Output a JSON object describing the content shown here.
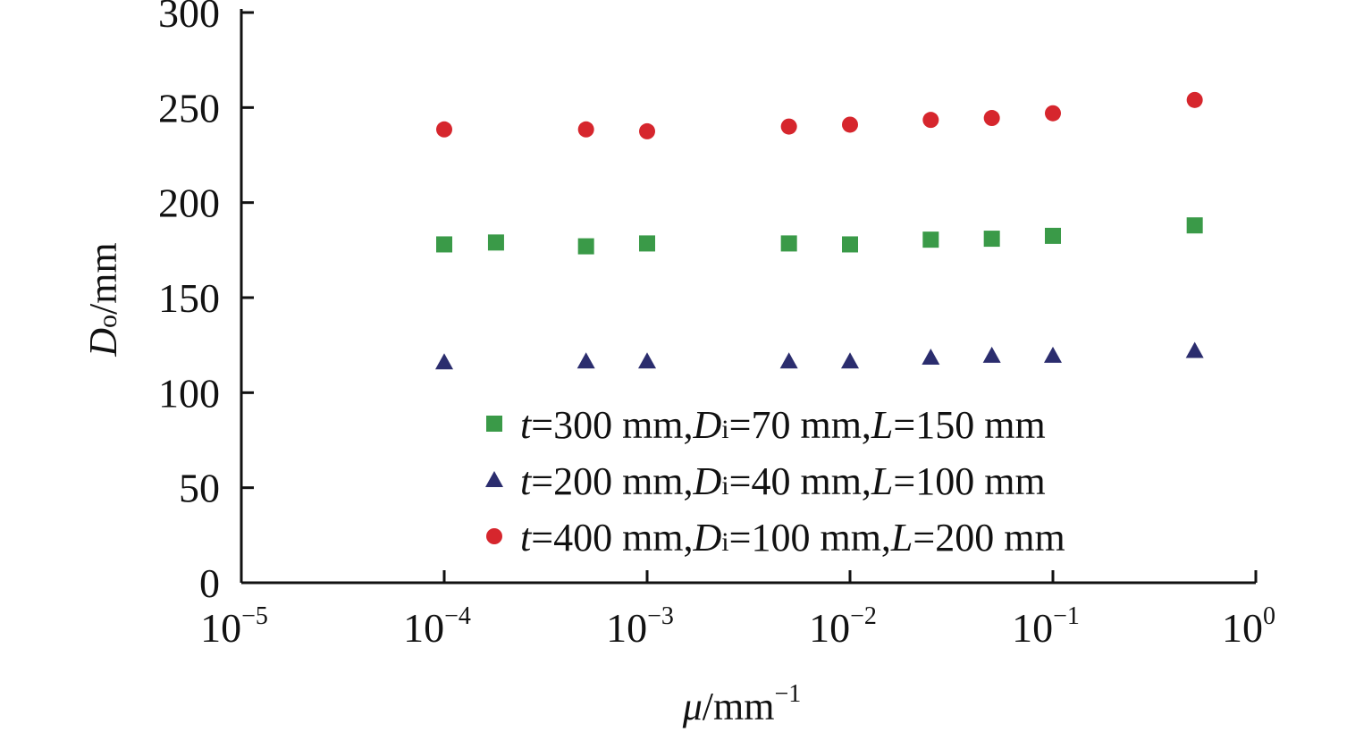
{
  "chart_data": {
    "type": "scatter",
    "title": "",
    "xlabel": {
      "var": "μ",
      "unit": "/mm",
      "exp": "−1"
    },
    "ylabel": {
      "var": "D",
      "sub": "o",
      "unit": "/mm"
    },
    "xscale": "log",
    "xlim": [
      1e-05,
      1
    ],
    "ylim": [
      0,
      300
    ],
    "y_ticks": [
      "0",
      "50",
      "100",
      "150",
      "200",
      "250",
      "300"
    ],
    "x_ticks": [
      {
        "base": "10",
        "exp": "−5"
      },
      {
        "base": "10",
        "exp": "−4"
      },
      {
        "base": "10",
        "exp": "−3"
      },
      {
        "base": "10",
        "exp": "−2"
      },
      {
        "base": "10",
        "exp": "−1"
      },
      {
        "base": "10",
        "exp": "0"
      }
    ],
    "grid": false,
    "legend_position": "bottom-right",
    "series": [
      {
        "name": "t=300 mm,Di=70 mm,L=150 mm",
        "marker": "square",
        "color": "#3a9a48",
        "x": [
          0.0001,
          0.00018,
          0.0005,
          0.001,
          0.005,
          0.01,
          0.025,
          0.05,
          0.1,
          0.5
        ],
        "y": [
          178,
          179,
          177,
          178.5,
          178.5,
          178,
          180.5,
          181,
          182.5,
          188
        ]
      },
      {
        "name": "t=200 mm,Di=40 mm,L=100 mm",
        "marker": "triangle",
        "color": "#2b2d6e",
        "x": [
          0.0001,
          0.0005,
          0.001,
          0.005,
          0.01,
          0.025,
          0.05,
          0.1,
          0.5
        ],
        "y": [
          116,
          116.5,
          116.5,
          116.5,
          116.5,
          118.5,
          119.5,
          119.5,
          122
        ]
      },
      {
        "name": "t=400 mm,Di=100 mm,L=200 mm",
        "marker": "circle",
        "color": "#d6262d",
        "x": [
          0.0001,
          0.0005,
          0.001,
          0.005,
          0.01,
          0.025,
          0.05,
          0.1,
          0.5
        ],
        "y": [
          238.5,
          238.5,
          237.5,
          240,
          241,
          243.5,
          244.5,
          247,
          254
        ]
      }
    ]
  }
}
